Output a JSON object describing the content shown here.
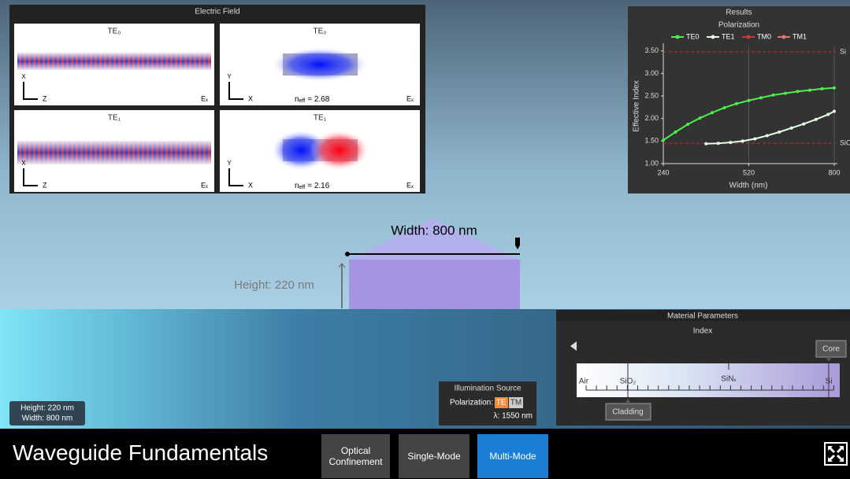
{
  "electric_field": {
    "title": "Electric Field",
    "panels": [
      {
        "mode": "TE₀",
        "vertical_axis": "X",
        "horizontal_axis": "Z",
        "component": "Eₓ"
      },
      {
        "mode": "TE₀",
        "vertical_axis": "Y",
        "horizontal_axis": "X",
        "component": "Eₓ",
        "neff_symbol": "n",
        "neff_subscript": "eff",
        "neff_text": "= 2.68"
      },
      {
        "mode": "TE₁",
        "vertical_axis": "X",
        "horizontal_axis": "Z",
        "component": "Eₓ"
      },
      {
        "mode": "TE₁",
        "vertical_axis": "Y",
        "horizontal_axis": "X",
        "component": "Eₓ",
        "neff_symbol": "n",
        "neff_subscript": "eff",
        "neff_text": "= 2.16"
      }
    ]
  },
  "results": {
    "title": "Results",
    "chart_data": {
      "type": "line",
      "subtitle": "Polarization",
      "x_label": "Width (nm)",
      "y_label": "Effective Index",
      "xlim": [
        240,
        800
      ],
      "ylim": [
        1,
        3.6
      ],
      "xticks": [
        240,
        520,
        800
      ],
      "yticks": [
        {
          "value": 1,
          "label": "1.00"
        },
        {
          "value": 1.5,
          "label": "1.50"
        },
        {
          "value": 2,
          "label": "2.00"
        },
        {
          "value": 2.5,
          "label": "2.50"
        },
        {
          "value": 3,
          "label": "3.00"
        },
        {
          "value": 3.5,
          "label": "3.50"
        }
      ],
      "grid": true,
      "reference_lines": [
        {
          "label": "Si",
          "value": 3.48,
          "color": "#c03030"
        },
        {
          "label": "SiO",
          "value": 1.45,
          "color": "#c03030"
        }
      ],
      "series": [
        {
          "name": "TE0",
          "color": "#4ef04e",
          "x": [
            240,
            280,
            320,
            360,
            400,
            440,
            480,
            520,
            560,
            600,
            640,
            680,
            720,
            760,
            800
          ],
          "values": [
            1.52,
            1.7,
            1.87,
            2.01,
            2.13,
            2.24,
            2.33,
            2.4,
            2.46,
            2.52,
            2.56,
            2.6,
            2.63,
            2.66,
            2.68
          ]
        },
        {
          "name": "TE1",
          "color": "#e6ffe6",
          "x": [
            380,
            420,
            460,
            500,
            540,
            580,
            620,
            660,
            700,
            740,
            780,
            800
          ],
          "values": [
            1.44,
            1.45,
            1.47,
            1.5,
            1.55,
            1.62,
            1.7,
            1.79,
            1.88,
            1.98,
            2.09,
            2.16
          ]
        },
        {
          "name": "TM0",
          "color": "#e03030",
          "x": [],
          "values": []
        },
        {
          "name": "TM1",
          "color": "#f07070",
          "x": [],
          "values": []
        }
      ]
    }
  },
  "scene": {
    "width_label": "Width: 800 nm",
    "height_label": "Height: 220 nm"
  },
  "info": {
    "height": "Height: 220 nm",
    "width": "Width: 800 nm"
  },
  "illumination": {
    "title": "Illumination Source",
    "polarization_label": "Polarization:",
    "options": [
      "TE",
      "TM"
    ],
    "wavelength": "λ: 1550 nm"
  },
  "material": {
    "title": "Material Parameters",
    "subtitle": "Index",
    "scale_labels": [
      "Air",
      "SiO₂",
      "SiNₓ",
      "Si"
    ],
    "core": "Core",
    "cladding": "Cladding"
  },
  "footer": {
    "title": "Waveguide Fundamentals",
    "buttons": [
      "Optical Confinement",
      "Single-Mode",
      "Multi-Mode"
    ]
  }
}
